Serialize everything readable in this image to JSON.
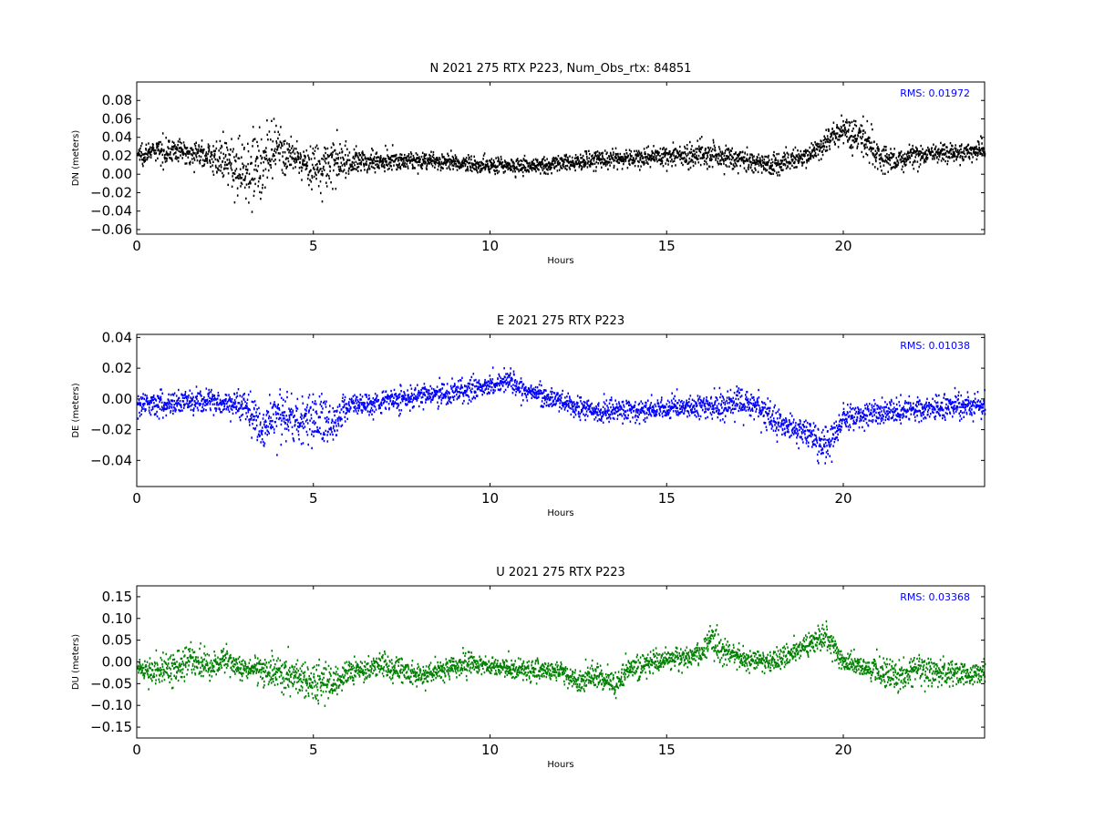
{
  "colors": {
    "background": "#ffffff",
    "axes": "#000000"
  },
  "chart_data": [
    {
      "type": "scatter",
      "title": "N 2021 275 RTX  P223, Num_Obs_rtx: 84851",
      "xlabel": "Hours",
      "ylabel": "DN (meters)",
      "xlim": [
        0,
        24
      ],
      "ylim": [
        -0.065,
        0.1
      ],
      "xticks": [
        0,
        5,
        10,
        15,
        20
      ],
      "xtick_labels": [
        "0",
        "5",
        "10",
        "15",
        "20"
      ],
      "yticks": [
        -0.06,
        -0.04,
        -0.02,
        0.0,
        0.02,
        0.04,
        0.06,
        0.08
      ],
      "ytick_labels": [
        "−0.06",
        "−0.04",
        "−0.02",
        "0.00",
        "0.02",
        "0.04",
        "0.06",
        "0.08"
      ],
      "color": "#000000",
      "annotation": "RMS:  0.01972",
      "annotation_color": "#0000ff",
      "annotation_position": "top-right",
      "grid": false,
      "num_obs": 84851,
      "rms": 0.01972,
      "trend": {
        "x": [
          0,
          0.5,
          1,
          1.5,
          2,
          2.5,
          3,
          3.5,
          4,
          4.5,
          5,
          5.5,
          6,
          7,
          8,
          9,
          10,
          11,
          12,
          13,
          14,
          15,
          16,
          17,
          18,
          19,
          19.5,
          20,
          20.5,
          21,
          21.5,
          22,
          23,
          24
        ],
        "y": [
          0.022,
          0.025,
          0.026,
          0.024,
          0.021,
          0.012,
          0.005,
          0.012,
          0.025,
          0.016,
          0.008,
          0.012,
          0.014,
          0.015,
          0.015,
          0.012,
          0.01,
          0.009,
          0.012,
          0.016,
          0.017,
          0.02,
          0.022,
          0.017,
          0.01,
          0.02,
          0.035,
          0.048,
          0.04,
          0.018,
          0.014,
          0.02,
          0.024,
          0.026
        ]
      },
      "spread": {
        "x": [
          0,
          2,
          2.5,
          3,
          3.5,
          4,
          4.5,
          5,
          5.5,
          6,
          8,
          12,
          15,
          16,
          17,
          19,
          20,
          20.5,
          21,
          21.5,
          22,
          24
        ],
        "y": [
          0.012,
          0.014,
          0.026,
          0.036,
          0.042,
          0.03,
          0.016,
          0.028,
          0.032,
          0.014,
          0.01,
          0.01,
          0.012,
          0.016,
          0.012,
          0.012,
          0.016,
          0.024,
          0.022,
          0.016,
          0.012,
          0.012
        ]
      }
    },
    {
      "type": "scatter",
      "title": "E 2021 275 RTX  P223",
      "xlabel": "Hours",
      "ylabel": "DE (meters)",
      "xlim": [
        0,
        24
      ],
      "ylim": [
        -0.057,
        0.042
      ],
      "xticks": [
        0,
        5,
        10,
        15,
        20
      ],
      "xtick_labels": [
        "0",
        "5",
        "10",
        "15",
        "20"
      ],
      "yticks": [
        -0.04,
        -0.02,
        0.0,
        0.02,
        0.04
      ],
      "ytick_labels": [
        "−0.04",
        "−0.02",
        "0.00",
        "0.02",
        "0.04"
      ],
      "color": "#0000ff",
      "annotation": "RMS:  0.01038",
      "annotation_color": "#0000ff",
      "annotation_position": "top-right",
      "grid": false,
      "rms": 0.01038,
      "trend": {
        "x": [
          0,
          1,
          2,
          3,
          3.5,
          4,
          4.5,
          5,
          5.5,
          6,
          7,
          8,
          9,
          10,
          10.5,
          11,
          12,
          13,
          14,
          15,
          16,
          17,
          17.5,
          18,
          18.5,
          19,
          19.5,
          20,
          21,
          22,
          23,
          24
        ],
        "y": [
          -0.003,
          -0.002,
          -0.001,
          -0.004,
          -0.018,
          -0.01,
          -0.015,
          -0.01,
          -0.016,
          -0.004,
          -0.002,
          0.002,
          0.004,
          0.01,
          0.011,
          0.006,
          -0.002,
          -0.008,
          -0.007,
          -0.006,
          -0.005,
          -0.003,
          -0.004,
          -0.012,
          -0.018,
          -0.022,
          -0.032,
          -0.012,
          -0.009,
          -0.007,
          -0.005,
          -0.004
        ]
      },
      "spread": {
        "x": [
          0,
          3,
          3.5,
          4,
          5,
          5.5,
          6,
          10,
          12,
          16,
          17.5,
          18.5,
          19.5,
          20,
          22,
          24
        ],
        "y": [
          0.008,
          0.009,
          0.016,
          0.014,
          0.02,
          0.014,
          0.008,
          0.008,
          0.007,
          0.008,
          0.011,
          0.01,
          0.012,
          0.009,
          0.008,
          0.009
        ]
      }
    },
    {
      "type": "scatter",
      "title": "U 2021 275 RTX  P223",
      "xlabel": "Hours",
      "ylabel": "DU (meters)",
      "xlim": [
        0,
        24
      ],
      "ylim": [
        -0.175,
        0.175
      ],
      "xticks": [
        0,
        5,
        10,
        15,
        20
      ],
      "xtick_labels": [
        "0",
        "5",
        "10",
        "15",
        "20"
      ],
      "yticks": [
        -0.15,
        -0.1,
        -0.05,
        0.0,
        0.05,
        0.1,
        0.15
      ],
      "ytick_labels": [
        "−0.15",
        "−0.10",
        "−0.05",
        "0.00",
        "0.05",
        "0.10",
        "0.15"
      ],
      "color": "#008000",
      "annotation": "RMS:  0.03368",
      "annotation_color": "#0000ff",
      "annotation_position": "top-right",
      "grid": false,
      "rms": 0.03368,
      "trend": {
        "x": [
          0,
          0.5,
          1,
          1.5,
          2,
          2.5,
          3,
          4,
          5,
          5.5,
          6,
          7,
          8,
          9,
          9.5,
          10,
          11,
          12,
          12.5,
          13,
          13.5,
          14,
          15,
          16,
          16.2,
          16.5,
          17,
          18,
          19,
          19.5,
          20,
          21,
          21.5,
          22,
          23,
          24
        ],
        "y": [
          -0.015,
          -0.022,
          -0.01,
          0.0,
          -0.015,
          0.01,
          -0.02,
          -0.02,
          -0.045,
          -0.055,
          -0.02,
          -0.01,
          -0.03,
          -0.01,
          -0.005,
          -0.01,
          -0.02,
          -0.02,
          -0.045,
          -0.03,
          -0.05,
          -0.01,
          0.005,
          0.02,
          0.06,
          0.03,
          0.01,
          0.0,
          0.04,
          0.06,
          0.0,
          -0.02,
          -0.04,
          -0.015,
          -0.03,
          -0.025
        ]
      },
      "spread": {
        "x": [
          0,
          1,
          2,
          3,
          5,
          5.5,
          6,
          10,
          13,
          16,
          16.2,
          17,
          19.5,
          20,
          21.5,
          24
        ],
        "y": [
          0.02,
          0.04,
          0.036,
          0.03,
          0.05,
          0.05,
          0.03,
          0.025,
          0.03,
          0.03,
          0.045,
          0.025,
          0.03,
          0.025,
          0.04,
          0.025
        ]
      }
    }
  ]
}
